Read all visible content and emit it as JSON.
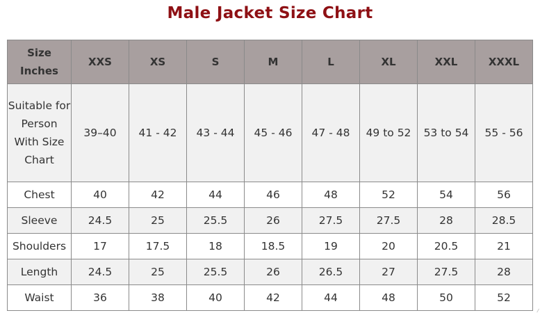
{
  "title": "Male Jacket Size Chart",
  "header": {
    "corner": "Size Inches",
    "sizes": [
      "XXS",
      "XS",
      "S",
      "M",
      "L",
      "XL",
      "XXL",
      "XXXL"
    ]
  },
  "rows": [
    {
      "label": "Suitable for Person With Size Chart",
      "values": [
        "39–40",
        "41 - 42",
        "43 - 44",
        "45 - 46",
        "47 - 48",
        "49 to 52",
        "53 to 54",
        "55 - 56"
      ]
    },
    {
      "label": "Chest",
      "values": [
        "40",
        "42",
        "44",
        "46",
        "48",
        "52",
        "54",
        "56"
      ]
    },
    {
      "label": "Sleeve",
      "values": [
        "24.5",
        "25",
        "25.5",
        "26",
        "27.5",
        "27.5",
        "28",
        "28.5"
      ]
    },
    {
      "label": "Shoulders",
      "values": [
        "17",
        "17.5",
        "18",
        "18.5",
        "19",
        "20",
        "20.5",
        "21"
      ]
    },
    {
      "label": "Length",
      "values": [
        "24.5",
        "25",
        "25.5",
        "26",
        "26.5",
        "27",
        "27.5",
        "28"
      ]
    },
    {
      "label": "Waist",
      "values": [
        "36",
        "38",
        "40",
        "42",
        "44",
        "48",
        "50",
        "52"
      ]
    }
  ],
  "colors": {
    "title": "#8e1014",
    "header_bg": "#a89f9f",
    "stripe_bg": "#f1f1f1"
  }
}
